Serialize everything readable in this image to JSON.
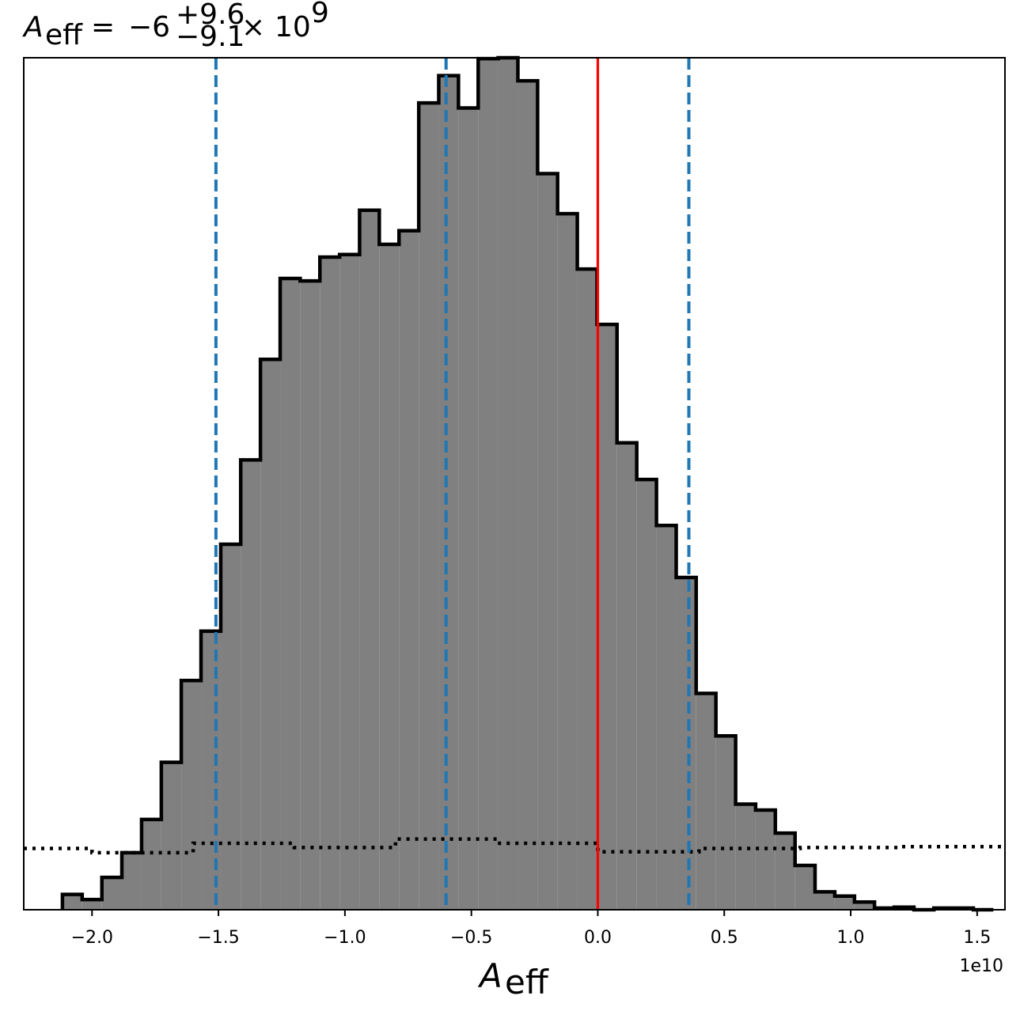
{
  "chart_data": {
    "type": "histogram",
    "title": {
      "symbol": "A",
      "subscript": "eff",
      "equals": "=",
      "median": "−6",
      "upper": "+9.6",
      "lower": "−9.1",
      "times": "×",
      "power_base": "10",
      "power_exp": "9"
    },
    "xlabel": {
      "symbol": "A",
      "subscript": "eff"
    },
    "ylabel": "",
    "x_offset_label": "1e10",
    "xlim": [
      -2.27,
      1.61
    ],
    "ylim": [
      0,
      1.0
    ],
    "x_ticks": [
      -2.0,
      -1.5,
      -1.0,
      -0.5,
      0.0,
      0.5,
      1.0,
      1.5
    ],
    "x_tick_labels": [
      "−2.0",
      "−1.5",
      "−1.0",
      "−0.5",
      "0.0",
      "0.5",
      "1.0",
      "1.5"
    ],
    "y_ticks_shown": false,
    "bin_edges": [
      -2.117,
      -2.039,
      -1.961,
      -1.882,
      -1.804,
      -1.726,
      -1.647,
      -1.569,
      -1.491,
      -1.412,
      -1.334,
      -1.256,
      -1.177,
      -1.099,
      -1.021,
      -0.942,
      -0.864,
      -0.786,
      -0.708,
      -0.629,
      -0.551,
      -0.473,
      -0.394,
      -0.316,
      -0.238,
      -0.159,
      -0.081,
      -0.003,
      0.076,
      0.154,
      0.232,
      0.31,
      0.389,
      0.467,
      0.545,
      0.624,
      0.702,
      0.78,
      0.859,
      0.937,
      1.015,
      1.094,
      1.172,
      1.25,
      1.329,
      1.407,
      1.485,
      1.564
    ],
    "series": [
      {
        "name": "",
        "style": "filled-step",
        "fill_color": "#808080",
        "edge_color": "#000000",
        "counts": [
          0.018,
          0.012,
          0.038,
          0.067,
          0.106,
          0.173,
          0.269,
          0.327,
          0.429,
          0.528,
          0.646,
          0.741,
          0.738,
          0.766,
          0.769,
          0.821,
          0.781,
          0.797,
          0.947,
          0.979,
          0.941,
          0.999,
          1.0,
          0.973,
          0.864,
          0.817,
          0.752,
          0.687,
          0.548,
          0.505,
          0.451,
          0.39,
          0.254,
          0.204,
          0.124,
          0.117,
          0.09,
          0.052,
          0.021,
          0.016,
          0.009,
          0.002,
          0.003,
          0.0,
          0.002,
          0.002,
          0.0
        ]
      },
      {
        "name": "",
        "style": "dotted-step",
        "edge_color": "#000000",
        "bin_edges": [
          -2.27,
          -2.0,
          -1.6,
          -1.2,
          -0.8,
          -0.4,
          0.0,
          0.4,
          0.8,
          1.2,
          1.61
        ],
        "counts": [
          0.072,
          0.067,
          0.078,
          0.073,
          0.083,
          0.078,
          0.068,
          0.072,
          0.073,
          0.074
        ]
      }
    ],
    "vertical_lines": [
      {
        "x": -1.51,
        "style": "dashed",
        "color": "#1f77b4"
      },
      {
        "x": -0.6,
        "style": "dashed",
        "color": "#1f77b4"
      },
      {
        "x": 0.36,
        "style": "dashed",
        "color": "#1f77b4"
      },
      {
        "x": 0.0,
        "style": "solid",
        "color": "#ff0000"
      }
    ],
    "grid": false,
    "legend": "none"
  }
}
